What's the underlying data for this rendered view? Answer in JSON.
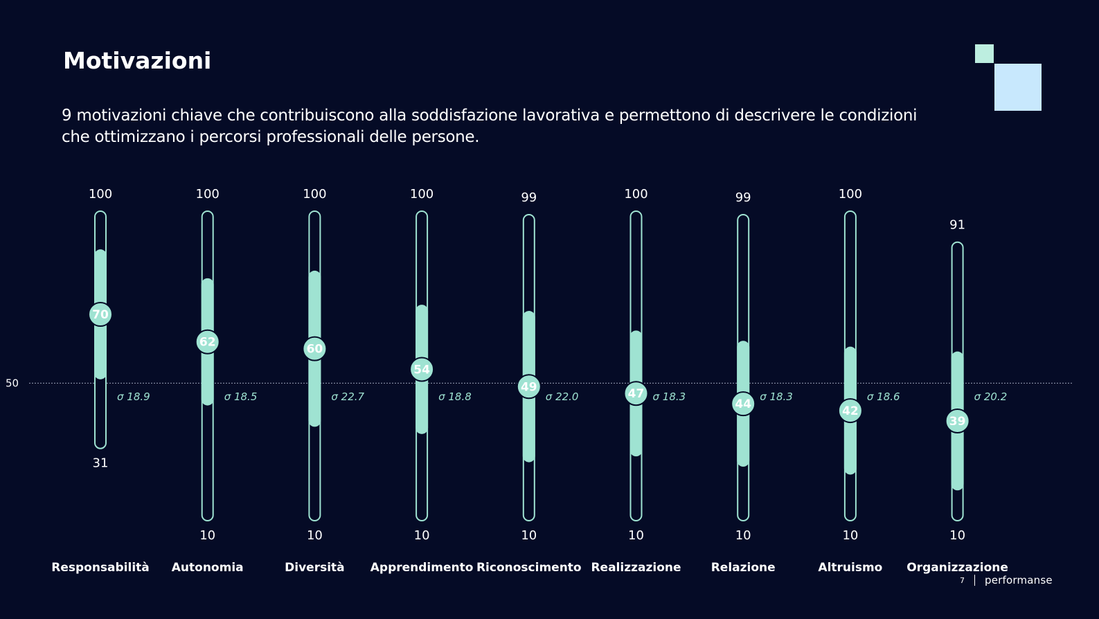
{
  "title": "Motivazioni",
  "subtitle": "9 motivazioni chiave che contribuiscono alla soddisfazione lavorativa e permettono di descrivere le condizioni che ottimizzano i percorsi professionali delle persone.",
  "footer": {
    "page_number": "7",
    "brand": "performanse"
  },
  "colors": {
    "background": "#050b26",
    "accent": "#9fe3d2",
    "deco_small": "#bdeee0",
    "deco_large": "#c8e8fd"
  },
  "chart_data": {
    "type": "range-dot",
    "reference_line": {
      "value": 50,
      "label": "50",
      "style": "dotted"
    },
    "ylim": [
      10,
      100
    ],
    "categories": [
      "Responsabilità",
      "Autonomia",
      "Diversità",
      "Apprendimento",
      "Riconoscimento",
      "Realizzazione",
      "Relazione",
      "Altruismo",
      "Organizzazione"
    ],
    "mean": [
      70,
      62,
      60,
      54,
      49,
      47,
      44,
      42,
      39
    ],
    "sigma": [
      18.9,
      18.5,
      22.7,
      18.8,
      22.0,
      18.3,
      18.3,
      18.6,
      20.2
    ],
    "sigma_labels": [
      "σ 18.9",
      "σ 18.5",
      "σ 22.7",
      "σ 18.8",
      "σ 22.0",
      "σ 18.3",
      "σ 18.3",
      "σ 18.6",
      "σ 20.2"
    ],
    "max": [
      100,
      100,
      100,
      100,
      99,
      100,
      99,
      100,
      91
    ],
    "min": [
      31,
      10,
      10,
      10,
      10,
      10,
      10,
      10,
      10
    ]
  }
}
